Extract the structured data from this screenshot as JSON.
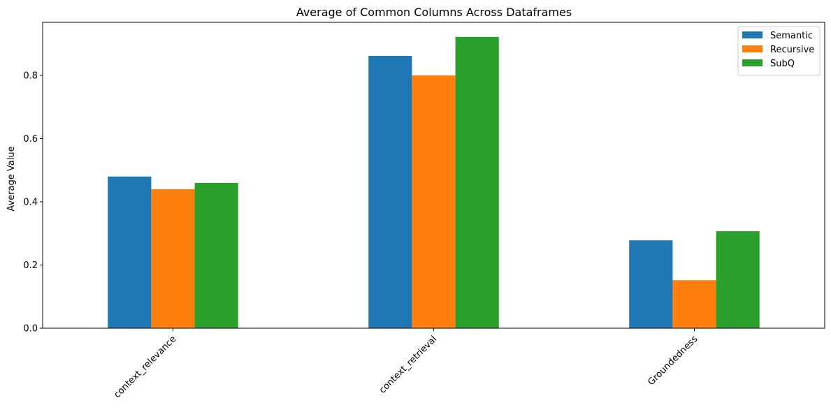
{
  "chart_data": {
    "type": "bar",
    "title": "Average of Common Columns Across Dataframes",
    "xlabel": "",
    "ylabel": "Average Value",
    "categories": [
      "context_relevance",
      "context_retrieval",
      "Groundedness"
    ],
    "series": [
      {
        "name": "Semantic",
        "color": "#1f77b4",
        "values": [
          0.48,
          0.862,
          0.278
        ]
      },
      {
        "name": "Recursive",
        "color": "#ff7f0e",
        "values": [
          0.44,
          0.8,
          0.152
        ]
      },
      {
        "name": "SubQ",
        "color": "#2ca02c",
        "values": [
          0.46,
          0.922,
          0.307
        ]
      }
    ],
    "ylim": [
      0,
      0.968
    ],
    "yticks": [
      0.0,
      0.2,
      0.4,
      0.6,
      0.8
    ],
    "ytick_labels": [
      "0.0",
      "0.2",
      "0.4",
      "0.6",
      "0.8"
    ],
    "grid": false,
    "legend_position": "top-right",
    "xtick_rotation_deg": 45
  }
}
